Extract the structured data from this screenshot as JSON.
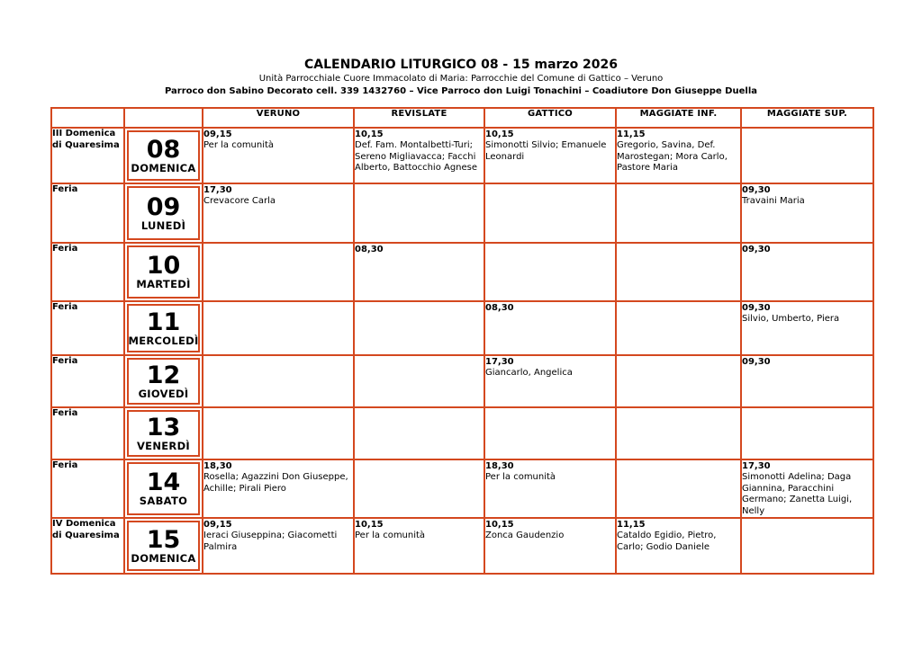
{
  "header": {
    "title": "CALENDARIO LITURGICO 08 - 15 marzo 2026",
    "subtitle": "Unità Parrocchiale Cuore Immacolato di Maria: Parrocchie del Comune di Gattico – Veruno",
    "clergy_line": "Parroco don Sabino Decorato cell. 339 1432760 – Vice Parroco don Luigi Tonachini – Coadiutore Don Giuseppe Duella"
  },
  "colors": {
    "table_border": "#d4481f",
    "text": "#000000",
    "page_background": "#ffffff"
  },
  "table": {
    "columns": [
      "VERUNO",
      "REVISLATE",
      "GATTICO",
      "MAGGIATE INF.",
      "MAGGIATE SUP."
    ],
    "rows": [
      {
        "liturgical_day": "III Domenica di Quaresima",
        "date": "08",
        "weekday": "DOMENICA",
        "cells": [
          {
            "time": "09,15",
            "names": "Per la comunità"
          },
          {
            "time": "10,15",
            "names": "Def. Fam. Montalbetti-Turi; Sereno Migliavacca; Facchi Alberto, Battocchio Agnese"
          },
          {
            "time": "10,15",
            "names": "Simonotti Silvio; Emanuele Leonardi"
          },
          {
            "time": "11,15",
            "names": "Gregorio, Savina, Def. Marostegan; Mora Carlo, Pastore Maria"
          },
          {
            "time": "",
            "names": ""
          }
        ]
      },
      {
        "liturgical_day": "Feria",
        "date": "09",
        "weekday": "LUNEDÌ",
        "cells": [
          {
            "time": "17,30",
            "names": "Crevacore Carla"
          },
          {
            "time": "",
            "names": ""
          },
          {
            "time": "",
            "names": ""
          },
          {
            "time": "",
            "names": ""
          },
          {
            "time": "09,30",
            "names": "Travaini Maria"
          }
        ]
      },
      {
        "liturgical_day": "Feria",
        "date": "10",
        "weekday": "MARTEDÌ",
        "cells": [
          {
            "time": "",
            "names": ""
          },
          {
            "time": "08,30",
            "names": ""
          },
          {
            "time": "",
            "names": ""
          },
          {
            "time": "",
            "names": ""
          },
          {
            "time": "09,30",
            "names": ""
          }
        ]
      },
      {
        "liturgical_day": "Feria",
        "date": "11",
        "weekday": "MERCOLEDÌ",
        "cells": [
          {
            "time": "",
            "names": ""
          },
          {
            "time": "",
            "names": ""
          },
          {
            "time": "08,30",
            "names": ""
          },
          {
            "time": "",
            "names": ""
          },
          {
            "time": "09,30",
            "names": "Silvio, Umberto, Piera"
          }
        ]
      },
      {
        "liturgical_day": "Feria",
        "date": "12",
        "weekday": "GIOVEDÌ",
        "cells": [
          {
            "time": "",
            "names": ""
          },
          {
            "time": "",
            "names": ""
          },
          {
            "time": "17,30",
            "names": "Giancarlo, Angelica"
          },
          {
            "time": "",
            "names": ""
          },
          {
            "time": "09,30",
            "names": ""
          }
        ]
      },
      {
        "liturgical_day": "Feria",
        "date": "13",
        "weekday": "VENERDÌ",
        "cells": [
          {
            "time": "",
            "names": ""
          },
          {
            "time": "",
            "names": ""
          },
          {
            "time": "",
            "names": ""
          },
          {
            "time": "",
            "names": ""
          },
          {
            "time": "",
            "names": ""
          }
        ]
      },
      {
        "liturgical_day": "Feria",
        "date": "14",
        "weekday": "SABATO",
        "cells": [
          {
            "time": "18,30",
            "names": "Rosella; Agazzini Don Giuseppe, Achille; Pirali Piero"
          },
          {
            "time": "",
            "names": ""
          },
          {
            "time": "18,30",
            "names": "Per la comunità"
          },
          {
            "time": "",
            "names": ""
          },
          {
            "time": "17,30",
            "names": "Simonotti Adelina; Daga Giannina, Paracchini Germano; Zanetta Luigi, Nelly"
          }
        ]
      },
      {
        "liturgical_day": "IV Domenica di Quaresima",
        "date": "15",
        "weekday": "DOMENICA",
        "cells": [
          {
            "time": "09,15",
            "names": "Ieraci Giuseppina; Giacometti Palmira"
          },
          {
            "time": "10,15",
            "names": "Per la comunità"
          },
          {
            "time": "10,15",
            "names": "Zonca Gaudenzio"
          },
          {
            "time": "11,15",
            "names": "Cataldo Egidio, Pietro, Carlo; Godio Daniele"
          },
          {
            "time": "",
            "names": ""
          }
        ]
      }
    ]
  }
}
